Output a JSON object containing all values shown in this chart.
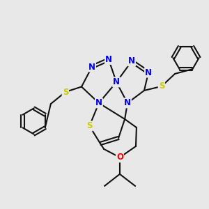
{
  "background_color": "#e8e8e8",
  "fig_size": [
    3.0,
    3.0
  ],
  "dpi": 100,
  "atom_colors": {
    "N": "#0000ee",
    "S": "#cccc00",
    "O": "#ff0000",
    "C": "#000000"
  },
  "bond_color": "#111111",
  "bond_width": 1.5,
  "font_size_atom": 8.5
}
